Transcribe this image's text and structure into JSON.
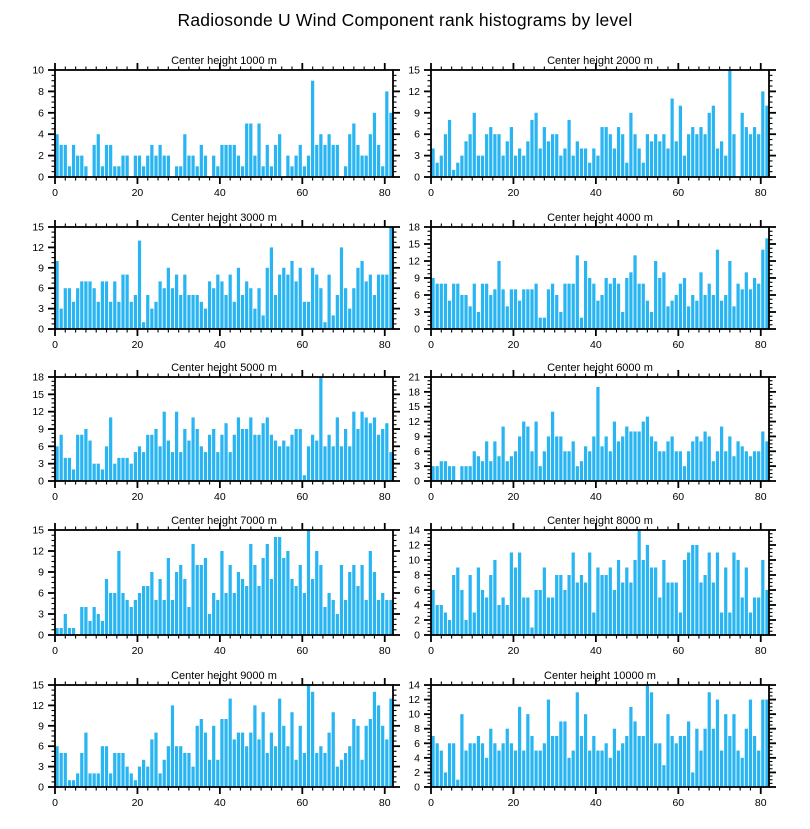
{
  "page_title": "Radiosonde U Wind Component rank histograms by level",
  "colors": {
    "bar": "#29B5F2",
    "axis": "#000000",
    "background": "#FFFFFF",
    "title_text": "#000000"
  },
  "chart_data": [
    {
      "type": "bar",
      "title": "Center height 1000 m",
      "xlabel": "",
      "ylabel": "",
      "xlim": [
        0,
        82
      ],
      "ylim": [
        0,
        10
      ],
      "y_step": 2,
      "x_ticks": [
        0,
        20,
        40,
        60,
        80
      ],
      "grid": false,
      "legend": "none",
      "values": [
        4,
        3,
        3,
        1,
        3,
        2,
        2,
        1,
        0,
        3,
        4,
        1,
        3,
        3,
        1,
        1,
        2,
        2,
        0,
        2,
        2,
        1,
        2,
        3,
        2,
        3,
        2,
        2,
        0,
        1,
        1,
        4,
        2,
        2,
        1,
        3,
        2,
        0,
        2,
        1,
        3,
        3,
        3,
        3,
        2,
        1,
        5,
        5,
        2,
        5,
        1,
        3,
        1,
        3,
        4,
        0,
        2,
        1,
        2,
        3,
        1,
        2,
        9,
        3,
        4,
        3,
        4,
        3,
        3,
        0,
        1,
        4,
        5,
        3,
        2,
        2,
        4,
        6,
        3,
        1,
        8,
        6
      ]
    },
    {
      "type": "bar",
      "title": "Center height 2000 m",
      "xlabel": "",
      "ylabel": "",
      "xlim": [
        0,
        82
      ],
      "ylim": [
        0,
        15
      ],
      "y_step": 3,
      "x_ticks": [
        0,
        20,
        40,
        60,
        80
      ],
      "grid": false,
      "legend": "none",
      "values": [
        4,
        2,
        3,
        6,
        8,
        1,
        2,
        3,
        5,
        6,
        9,
        3,
        3,
        6,
        7,
        6,
        6,
        3,
        5,
        7,
        3,
        4,
        3,
        5,
        8,
        9,
        4,
        7,
        5,
        6,
        6,
        3,
        4,
        8,
        3,
        5,
        4,
        4,
        2,
        4,
        3,
        7,
        7,
        6,
        4,
        7,
        6,
        2,
        9,
        6,
        4,
        2,
        6,
        5,
        6,
        5,
        6,
        4,
        11,
        5,
        10,
        3,
        6,
        7,
        6,
        7,
        6,
        9,
        10,
        4,
        5,
        3,
        15,
        6,
        0,
        9,
        7,
        6,
        7,
        6,
        12,
        10
      ]
    },
    {
      "type": "bar",
      "title": "Center height 3000 m",
      "xlabel": "",
      "ylabel": "",
      "xlim": [
        0,
        82
      ],
      "ylim": [
        0,
        15
      ],
      "y_step": 3,
      "x_ticks": [
        0,
        20,
        40,
        60,
        80
      ],
      "grid": false,
      "legend": "none",
      "values": [
        10,
        3,
        6,
        6,
        4,
        6,
        7,
        7,
        7,
        6,
        4,
        7,
        7,
        4,
        7,
        4,
        8,
        8,
        4,
        5,
        13,
        1,
        5,
        3,
        4,
        7,
        6,
        9,
        6,
        8,
        5,
        8,
        5,
        5,
        5,
        4,
        3,
        7,
        6,
        8,
        7,
        5,
        8,
        4,
        9,
        5,
        7,
        6,
        3,
        6,
        2,
        9,
        12,
        5,
        8,
        9,
        8,
        10,
        7,
        9,
        4,
        4,
        9,
        8,
        6,
        1,
        8,
        2,
        5,
        12,
        6,
        3,
        6,
        9,
        10,
        7,
        8,
        5,
        8,
        8,
        8,
        15
      ]
    },
    {
      "type": "bar",
      "title": "Center height 4000 m",
      "xlabel": "",
      "ylabel": "",
      "xlim": [
        0,
        82
      ],
      "ylim": [
        0,
        18
      ],
      "y_step": 3,
      "x_ticks": [
        0,
        20,
        40,
        60,
        80
      ],
      "grid": false,
      "legend": "none",
      "values": [
        9,
        8,
        8,
        8,
        5,
        8,
        8,
        6,
        6,
        4,
        8,
        3,
        8,
        8,
        6,
        7,
        12,
        7,
        4,
        7,
        7,
        5,
        7,
        7,
        7,
        8,
        2,
        2,
        7,
        8,
        6,
        3,
        8,
        8,
        8,
        13,
        2,
        12,
        9,
        8,
        5,
        6,
        9,
        8,
        9,
        8,
        3,
        9,
        10,
        13,
        8,
        8,
        5,
        3,
        12,
        9,
        10,
        4,
        5,
        6,
        8,
        9,
        4,
        6,
        5,
        10,
        6,
        8,
        6,
        14,
        5,
        6,
        12,
        4,
        8,
        7,
        10,
        7,
        9,
        8,
        14,
        16
      ]
    },
    {
      "type": "bar",
      "title": "Center height 5000 m",
      "xlabel": "",
      "ylabel": "",
      "xlim": [
        0,
        82
      ],
      "ylim": [
        0,
        18
      ],
      "y_step": 3,
      "x_ticks": [
        0,
        20,
        40,
        60,
        80
      ],
      "grid": false,
      "legend": "none",
      "values": [
        6,
        8,
        4,
        4,
        2,
        8,
        8,
        9,
        7,
        3,
        3,
        2,
        6,
        11,
        3,
        4,
        4,
        4,
        3,
        5,
        6,
        5,
        8,
        8,
        9,
        6,
        12,
        7,
        5,
        12,
        5,
        9,
        7,
        11,
        9,
        6,
        5,
        8,
        9,
        5,
        8,
        10,
        5,
        8,
        11,
        9,
        9,
        11,
        8,
        8,
        10,
        11,
        8,
        7,
        6,
        7,
        6,
        8,
        9,
        9,
        1,
        6,
        8,
        7,
        18,
        6,
        8,
        6,
        11,
        6,
        9,
        6,
        12,
        9,
        12,
        11,
        10,
        11,
        8,
        9,
        10,
        5
      ]
    },
    {
      "type": "bar",
      "title": "Center height 6000 m",
      "xlabel": "",
      "ylabel": "",
      "xlim": [
        0,
        82
      ],
      "ylim": [
        0,
        21
      ],
      "y_step": 3,
      "x_ticks": [
        0,
        20,
        40,
        60,
        80
      ],
      "grid": false,
      "legend": "none",
      "values": [
        3,
        3,
        4,
        4,
        3,
        3,
        0,
        3,
        3,
        3,
        6,
        5,
        4,
        8,
        4,
        8,
        5,
        11,
        4,
        5,
        6,
        9,
        12,
        11,
        6,
        12,
        3,
        6,
        9,
        14,
        9,
        9,
        6,
        6,
        8,
        3,
        4,
        7,
        6,
        9,
        19,
        7,
        9,
        6,
        12,
        8,
        9,
        11,
        10,
        10,
        10,
        12,
        13,
        9,
        8,
        6,
        6,
        8,
        9,
        6,
        6,
        3,
        6,
        8,
        9,
        8,
        10,
        9,
        4,
        6,
        11,
        6,
        9,
        5,
        8,
        7,
        6,
        5,
        6,
        6,
        10,
        8
      ]
    },
    {
      "type": "bar",
      "title": "Center height 7000 m",
      "xlabel": "",
      "ylabel": "",
      "xlim": [
        0,
        82
      ],
      "ylim": [
        0,
        15
      ],
      "y_step": 3,
      "x_ticks": [
        0,
        20,
        40,
        60,
        80
      ],
      "grid": false,
      "legend": "none",
      "values": [
        1,
        1,
        3,
        1,
        1,
        0,
        4,
        4,
        2,
        4,
        3,
        2,
        8,
        6,
        6,
        12,
        6,
        5,
        4,
        5,
        6,
        7,
        7,
        9,
        5,
        8,
        5,
        11,
        5,
        9,
        10,
        8,
        4,
        13,
        10,
        10,
        11,
        3,
        6,
        5,
        12,
        6,
        10,
        6,
        9,
        8,
        7,
        13,
        10,
        7,
        11,
        13,
        8,
        14,
        14,
        11,
        12,
        8,
        7,
        10,
        6,
        15,
        8,
        12,
        10,
        4,
        6,
        5,
        3,
        10,
        5,
        9,
        10,
        7,
        10,
        5,
        12,
        9,
        5,
        6,
        5,
        5
      ]
    },
    {
      "type": "bar",
      "title": "Center height 8000 m",
      "xlabel": "",
      "ylabel": "",
      "xlim": [
        0,
        82
      ],
      "ylim": [
        0,
        14
      ],
      "y_step": 2,
      "x_ticks": [
        0,
        20,
        40,
        60,
        80
      ],
      "grid": false,
      "legend": "none",
      "values": [
        6,
        4,
        4,
        3,
        2,
        8,
        9,
        6,
        2,
        8,
        3,
        9,
        6,
        5,
        8,
        10,
        4,
        5,
        4,
        11,
        9,
        11,
        5,
        5,
        1,
        6,
        6,
        9,
        5,
        5,
        8,
        8,
        6,
        8,
        11,
        7,
        8,
        7,
        11,
        3,
        9,
        8,
        8,
        9,
        6,
        10,
        7,
        9,
        7,
        10,
        14,
        10,
        12,
        9,
        9,
        5,
        10,
        7,
        7,
        7,
        3,
        10,
        11,
        12,
        12,
        7,
        8,
        11,
        7,
        11,
        3,
        9,
        3,
        11,
        10,
        5,
        9,
        3,
        5,
        5,
        10,
        6
      ]
    },
    {
      "type": "bar",
      "title": "Center height 9000 m",
      "xlabel": "",
      "ylabel": "",
      "xlim": [
        0,
        82
      ],
      "ylim": [
        0,
        15
      ],
      "y_step": 3,
      "x_ticks": [
        0,
        20,
        40,
        60,
        80
      ],
      "grid": false,
      "legend": "none",
      "values": [
        6,
        5,
        5,
        1,
        1,
        2,
        5,
        8,
        2,
        2,
        2,
        6,
        6,
        2,
        5,
        5,
        5,
        3,
        2,
        1,
        3,
        4,
        3,
        7,
        8,
        2,
        4,
        6,
        12,
        6,
        6,
        5,
        5,
        3,
        9,
        10,
        8,
        4,
        9,
        4,
        10,
        10,
        13,
        7,
        8,
        8,
        6,
        8,
        12,
        7,
        11,
        5,
        8,
        6,
        13,
        9,
        6,
        11,
        4,
        9,
        5,
        15,
        14,
        5,
        6,
        5,
        8,
        11,
        3,
        4,
        5,
        6,
        10,
        9,
        4,
        9,
        10,
        14,
        12,
        9,
        7,
        13
      ]
    },
    {
      "type": "bar",
      "title": "Center height 10000 m",
      "xlabel": "",
      "ylabel": "",
      "xlim": [
        0,
        82
      ],
      "ylim": [
        0,
        14
      ],
      "y_step": 2,
      "x_ticks": [
        0,
        20,
        40,
        60,
        80
      ],
      "grid": false,
      "legend": "none",
      "values": [
        7,
        6,
        5,
        2,
        6,
        6,
        1,
        10,
        5,
        6,
        6,
        7,
        6,
        4,
        8,
        6,
        5,
        6,
        8,
        6,
        5,
        11,
        5,
        10,
        7,
        5,
        5,
        6,
        12,
        7,
        7,
        9,
        9,
        4,
        5,
        13,
        7,
        10,
        5,
        7,
        5,
        5,
        6,
        4,
        8,
        5,
        6,
        7,
        11,
        9,
        7,
        7,
        14,
        13,
        6,
        6,
        3,
        10,
        7,
        6,
        7,
        7,
        9,
        2,
        8,
        5,
        8,
        13,
        8,
        12,
        5,
        10,
        7,
        10,
        5,
        4,
        8,
        12,
        7,
        5,
        12,
        12
      ]
    }
  ]
}
